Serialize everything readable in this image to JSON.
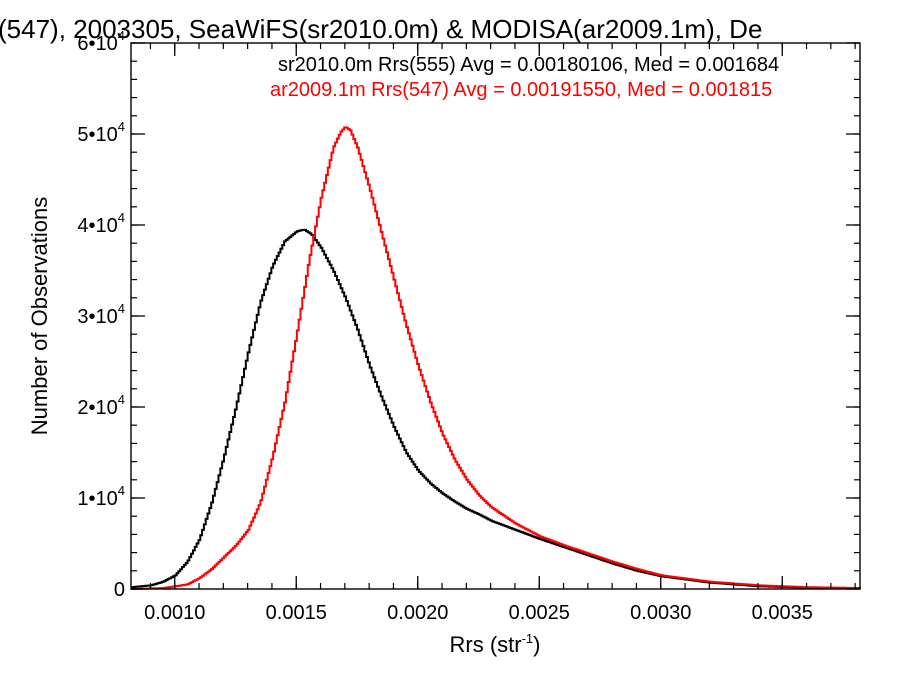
{
  "chart_data": {
    "type": "line",
    "title": "(547), 2003305, SeaWiFS(sr2010.0m) & MODISA(ar2009.1m), De",
    "xlabel": {
      "main": "Rrs (str",
      "sup": "-1",
      "tail": ")"
    },
    "ylabel": "Number of Observations",
    "xlim": [
      0.00082,
      0.00382
    ],
    "ylim": [
      0,
      60000
    ],
    "x_ticks": [
      {
        "value": 0.001,
        "label": "0.0010"
      },
      {
        "value": 0.0015,
        "label": "0.0015"
      },
      {
        "value": 0.002,
        "label": "0.0020"
      },
      {
        "value": 0.0025,
        "label": "0.0025"
      },
      {
        "value": 0.003,
        "label": "0.0030"
      },
      {
        "value": 0.0035,
        "label": "0.0035"
      }
    ],
    "y_ticks": [
      {
        "value": 0,
        "mant": "0",
        "exp": ""
      },
      {
        "value": 10000,
        "mant": "1•10",
        "exp": "4"
      },
      {
        "value": 20000,
        "mant": "2•10",
        "exp": "4"
      },
      {
        "value": 30000,
        "mant": "3•10",
        "exp": "4"
      },
      {
        "value": 40000,
        "mant": "4•10",
        "exp": "4"
      },
      {
        "value": 50000,
        "mant": "5•10",
        "exp": "4"
      },
      {
        "value": 60000,
        "mant": "6•10",
        "exp": "4"
      }
    ],
    "series": [
      {
        "name": "sr2010.0m Rrs(555) Avg = 0.00180106, Med = 0.001684",
        "color": "#000000",
        "x": [
          0.00082,
          0.0009,
          0.00095,
          0.001,
          0.00105,
          0.0011,
          0.00115,
          0.0012,
          0.00125,
          0.0013,
          0.00135,
          0.0014,
          0.00145,
          0.0015,
          0.00153,
          0.00156,
          0.0016,
          0.00165,
          0.0017,
          0.00175,
          0.0018,
          0.00185,
          0.0019,
          0.00195,
          0.002,
          0.00205,
          0.0021,
          0.00215,
          0.0022,
          0.00225,
          0.0023,
          0.0024,
          0.0025,
          0.0026,
          0.0027,
          0.0028,
          0.0029,
          0.003,
          0.0032,
          0.0034,
          0.0036,
          0.00382
        ],
        "y": [
          200,
          400,
          800,
          1500,
          3000,
          5500,
          9500,
          14500,
          20000,
          26000,
          31500,
          35500,
          38200,
          39300,
          39500,
          39000,
          37500,
          35000,
          32000,
          28500,
          24500,
          21000,
          17800,
          15000,
          13000,
          11600,
          10500,
          9600,
          8800,
          8200,
          7500,
          6500,
          5500,
          4600,
          3700,
          2800,
          2000,
          1400,
          700,
          300,
          150,
          100
        ]
      },
      {
        "name": "ar2009.1m Rrs(547) Avg = 0.00191550, Med = 0.001815",
        "color": "#ff0000",
        "x": [
          0.00082,
          0.00095,
          0.00105,
          0.0011,
          0.00115,
          0.0012,
          0.00125,
          0.0013,
          0.00135,
          0.0014,
          0.00145,
          0.0015,
          0.00155,
          0.0016,
          0.00165,
          0.00168,
          0.0017,
          0.00172,
          0.00175,
          0.0018,
          0.00185,
          0.0019,
          0.00195,
          0.002,
          0.00205,
          0.0021,
          0.00215,
          0.0022,
          0.00225,
          0.0023,
          0.0024,
          0.0025,
          0.0026,
          0.0027,
          0.0028,
          0.0029,
          0.003,
          0.0032,
          0.0034,
          0.0036,
          0.00382
        ],
        "y": [
          0,
          100,
          500,
          1200,
          2200,
          3500,
          4800,
          6500,
          9500,
          14500,
          20500,
          28000,
          36000,
          43000,
          48500,
          50200,
          50800,
          50400,
          48500,
          44000,
          39000,
          34000,
          29000,
          24500,
          20500,
          17000,
          14200,
          12000,
          10300,
          9000,
          7200,
          5800,
          4800,
          3900,
          3000,
          2200,
          1500,
          800,
          400,
          200,
          100
        ]
      }
    ]
  }
}
